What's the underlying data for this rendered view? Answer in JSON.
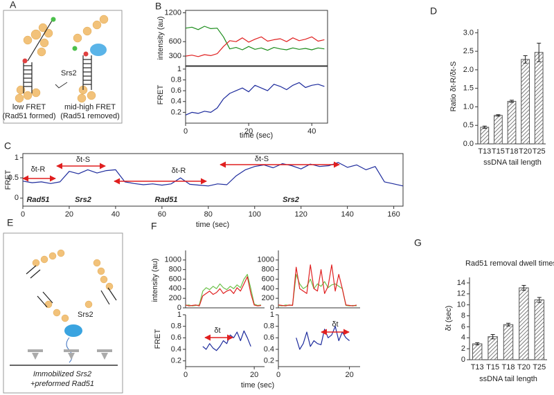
{
  "panel_labels": [
    "A",
    "B",
    "C",
    "D",
    "E",
    "F",
    "G"
  ],
  "diagram_a": {
    "enzyme": "Srs2",
    "left_line1": "low FRET",
    "left_line2": "(Rad51 formed)",
    "right_line1": "mid-high FRET",
    "right_line2": "(Rad51 removed)"
  },
  "diagram_e": {
    "enzyme": "Srs2",
    "line1": "Immobilized Srs2",
    "line2": "+preformed Rad51"
  },
  "chart_data": [
    {
      "type": "line",
      "ylabel": "intensity (au)",
      "xlim": [
        0,
        45
      ],
      "ylim": [
        100,
        1250
      ],
      "yticks": [
        300,
        600,
        1200
      ],
      "x": [
        0,
        2,
        4,
        6,
        8,
        10,
        12,
        14,
        16,
        18,
        20,
        22,
        24,
        26,
        28,
        30,
        32,
        34,
        36,
        38,
        40,
        42,
        44
      ],
      "series": [
        {
          "color": "#1a8c1a",
          "values": [
            880,
            900,
            850,
            920,
            870,
            880,
            700,
            450,
            480,
            430,
            500,
            440,
            470,
            420,
            480,
            450,
            430,
            470,
            440,
            460,
            430,
            470,
            450
          ]
        },
        {
          "color": "#e01f1f",
          "values": [
            300,
            320,
            290,
            330,
            310,
            350,
            500,
            620,
            600,
            680,
            590,
            650,
            700,
            610,
            640,
            660,
            600,
            680,
            620,
            650,
            700,
            610,
            640
          ]
        }
      ]
    },
    {
      "type": "line",
      "ylabel": "FRET",
      "xlabel": "time (sec)",
      "xlim": [
        0,
        45
      ],
      "ylim": [
        0,
        1.05
      ],
      "yticks": [
        0.2,
        0.4,
        0.6,
        0.8,
        1
      ],
      "xticks": [
        0,
        20,
        40
      ],
      "x": [
        0,
        2,
        4,
        6,
        8,
        10,
        12,
        14,
        16,
        18,
        20,
        22,
        24,
        26,
        28,
        30,
        32,
        34,
        36,
        38,
        40,
        42,
        44
      ],
      "series": [
        {
          "color": "#1c2a9c",
          "values": [
            0.15,
            0.2,
            0.18,
            0.22,
            0.2,
            0.28,
            0.45,
            0.55,
            0.6,
            0.65,
            0.58,
            0.7,
            0.65,
            0.6,
            0.72,
            0.68,
            0.62,
            0.7,
            0.75,
            0.66,
            0.7,
            0.72,
            0.68
          ]
        }
      ]
    },
    {
      "type": "line",
      "ylabel": "FRET",
      "xlabel": "time (sec)",
      "xlim": [
        0,
        164
      ],
      "ylim": [
        -0.2,
        1.1
      ],
      "yticks": [
        0,
        0.5,
        1
      ],
      "xticks": [
        0,
        20,
        40,
        60,
        80,
        100,
        120,
        140,
        160
      ],
      "annotations": [
        "δt-R",
        "δt-S",
        "δt-R",
        "δt-S"
      ],
      "phase_labels": [
        "Rad51",
        "Srs2",
        "Rad51",
        "Srs2"
      ],
      "x": [
        0,
        4,
        8,
        12,
        16,
        20,
        24,
        28,
        32,
        36,
        40,
        44,
        48,
        52,
        56,
        60,
        64,
        68,
        72,
        76,
        80,
        84,
        88,
        92,
        96,
        100,
        104,
        108,
        112,
        116,
        120,
        124,
        128,
        132,
        136,
        140,
        144,
        148,
        152,
        156,
        160,
        164
      ],
      "series": [
        {
          "color": "#1c2a9c",
          "values": [
            0.42,
            0.38,
            0.4,
            0.36,
            0.4,
            0.66,
            0.6,
            0.7,
            0.62,
            0.68,
            0.7,
            0.4,
            0.36,
            0.33,
            0.35,
            0.32,
            0.35,
            0.5,
            0.34,
            0.32,
            0.3,
            0.35,
            0.33,
            0.55,
            0.7,
            0.78,
            0.82,
            0.75,
            0.85,
            0.8,
            0.72,
            0.84,
            0.78,
            0.8,
            0.88,
            0.76,
            0.82,
            0.7,
            0.78,
            0.4,
            0.35,
            0.3
          ]
        }
      ]
    },
    {
      "type": "bar",
      "ylabel": "Ratio δt-R/δt-S",
      "xlabel": "ssDNA tail length",
      "ylim": [
        0,
        3.1
      ],
      "yticks": [
        {
          "value": 0,
          "label": "0.0"
        },
        0.5,
        {
          "value": 1,
          "label": "1.0"
        },
        1.5,
        {
          "value": 2,
          "label": "2.0"
        },
        2.5,
        {
          "value": 3,
          "label": "3.0"
        }
      ],
      "categories": [
        "T13",
        "T15",
        "T18",
        "T20",
        "T25"
      ],
      "values": [
        0.45,
        0.77,
        1.15,
        2.28,
        2.47
      ],
      "errors": [
        0.03,
        0.02,
        0.03,
        0.1,
        0.25
      ],
      "color": "#555555"
    },
    {
      "type": "line",
      "ylabel": "intensity (au)",
      "xlim": [
        0,
        23
      ],
      "ylim": [
        0,
        1200
      ],
      "yticks": [
        0,
        200,
        400,
        600,
        800,
        1000
      ],
      "x": [
        0,
        1,
        2,
        3,
        4,
        5,
        6,
        7,
        8,
        9,
        10,
        11,
        12,
        13,
        14,
        15,
        16,
        17,
        18,
        19,
        20,
        21,
        22
      ],
      "series": [
        {
          "color": "#6cc04a",
          "values": [
            50,
            60,
            40,
            50,
            60,
            350,
            420,
            380,
            450,
            400,
            500,
            420,
            380,
            450,
            400,
            480,
            420,
            600,
            700,
            400,
            80,
            50,
            60
          ]
        },
        {
          "color": "#e01f1f",
          "values": [
            60,
            40,
            50,
            60,
            40,
            250,
            300,
            350,
            280,
            320,
            400,
            300,
            350,
            380,
            300,
            420,
            350,
            500,
            650,
            300,
            60,
            40,
            50
          ]
        }
      ]
    },
    {
      "type": "line",
      "ylabel": "FRET",
      "xlabel": "time (sec)",
      "xlim": [
        0,
        23
      ],
      "ylim": [
        0.1,
        1.0
      ],
      "yticks": [
        0.2,
        0.4,
        0.6,
        0.8,
        1
      ],
      "xticks": [
        0,
        20
      ],
      "annotations": [
        "δt"
      ],
      "x": [
        0,
        1,
        2,
        3,
        4,
        5,
        6,
        7,
        8,
        9,
        10,
        11,
        12,
        13,
        14,
        15,
        16,
        17,
        18,
        19,
        20,
        21,
        22
      ],
      "series": [
        {
          "color": "#1c2a9c",
          "values": [
            null,
            null,
            null,
            null,
            null,
            0.45,
            0.4,
            0.5,
            0.42,
            0.38,
            0.45,
            0.55,
            0.5,
            0.65,
            0.6,
            0.7,
            0.55,
            0.72,
            0.6,
            0.45,
            null,
            null,
            null
          ]
        }
      ]
    },
    {
      "type": "line",
      "xlim": [
        0,
        23
      ],
      "ylim": [
        0,
        1200
      ],
      "yticks": [
        0,
        200,
        400,
        600,
        800,
        1000
      ],
      "x": [
        0,
        1,
        2,
        3,
        4,
        5,
        6,
        7,
        8,
        9,
        10,
        11,
        12,
        13,
        14,
        15,
        16,
        17,
        18,
        19,
        20,
        21,
        22
      ],
      "series": [
        {
          "color": "#6cc04a",
          "values": [
            50,
            40,
            60,
            50,
            60,
            700,
            500,
            400,
            450,
            600,
            400,
            500,
            450,
            550,
            420,
            480,
            500,
            450,
            400,
            50,
            40,
            50,
            40
          ]
        },
        {
          "color": "#e01f1f",
          "values": [
            60,
            50,
            40,
            60,
            50,
            850,
            400,
            350,
            300,
            900,
            400,
            350,
            800,
            300,
            450,
            900,
            350,
            700,
            400,
            60,
            50,
            40,
            60
          ]
        }
      ]
    },
    {
      "type": "line",
      "xlim": [
        0,
        23
      ],
      "ylim": [
        0.1,
        1.0
      ],
      "yticks": [
        0.2,
        0.4,
        0.6,
        0.8,
        1
      ],
      "xticks": [
        0,
        20
      ],
      "annotations": [
        "δt"
      ],
      "x": [
        0,
        1,
        2,
        3,
        4,
        5,
        6,
        7,
        8,
        9,
        10,
        11,
        12,
        13,
        14,
        15,
        16,
        17,
        18,
        19,
        20,
        21,
        22
      ],
      "series": [
        {
          "color": "#1c2a9c",
          "values": [
            null,
            null,
            null,
            null,
            null,
            0.6,
            0.4,
            0.5,
            0.7,
            0.45,
            0.55,
            0.5,
            0.48,
            0.75,
            0.6,
            0.65,
            0.8,
            0.55,
            0.7,
            0.6,
            0.55,
            null,
            null
          ]
        }
      ]
    },
    {
      "type": "bar",
      "title": "Rad51 removal dwell times",
      "ylabel": "δt (sec)",
      "xlabel": "ssDNA tail length",
      "ylim": [
        0,
        15
      ],
      "yticks": [
        0,
        2,
        4,
        6,
        8,
        10,
        12,
        14
      ],
      "categories": [
        "T13",
        "T15",
        "T18",
        "T20",
        "T25"
      ],
      "values": [
        2.9,
        4.2,
        6.4,
        13.1,
        10.9
      ],
      "errors": [
        0.2,
        0.4,
        0.25,
        0.45,
        0.45
      ],
      "color": "#555555"
    }
  ]
}
